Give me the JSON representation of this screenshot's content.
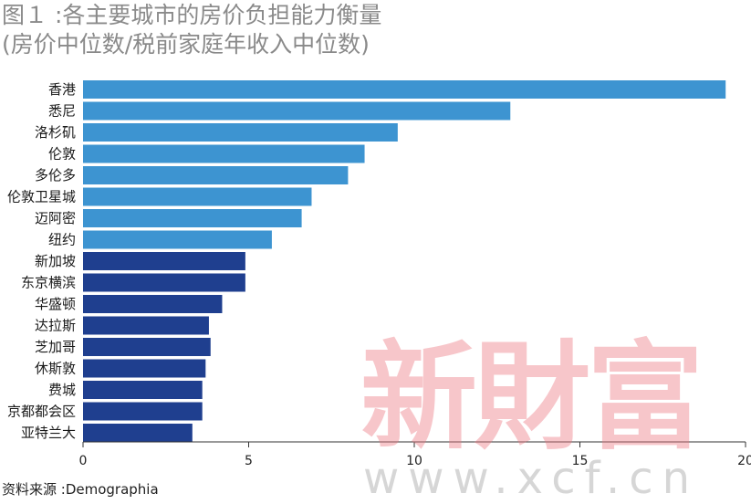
{
  "title": {
    "line1": "图１ :各主要城市的房价负担能力衡量",
    "line2": "(房价中位数/税前家庭年收入中位数)"
  },
  "source": "资料来源 :Demographia",
  "watermark": {
    "cn": "新財富",
    "url": "www.xcf.cn"
  },
  "colors": {
    "light_bar": "#3d94d1",
    "dark_bar": "#1f3f8f",
    "axis": "#333333"
  },
  "chart_data": {
    "type": "bar",
    "orientation": "horizontal",
    "categories": [
      "香港",
      "悉尼",
      "洛杉矶",
      "伦敦",
      "多伦多",
      "伦敦卫星城",
      "迈阿密",
      "纽约",
      "新加坡",
      "东京横滨",
      "华盛顿",
      "达拉斯",
      "芝加哥",
      "休斯敦",
      "费城",
      "京都都会区",
      "亚特兰大"
    ],
    "values": [
      19.4,
      12.9,
      9.5,
      8.5,
      8.0,
      6.9,
      6.6,
      5.7,
      4.9,
      4.9,
      4.2,
      3.8,
      3.85,
      3.7,
      3.6,
      3.6,
      3.3
    ],
    "bar_color_groups": [
      "light",
      "light",
      "light",
      "light",
      "light",
      "light",
      "light",
      "light",
      "dark",
      "dark",
      "dark",
      "dark",
      "dark",
      "dark",
      "dark",
      "dark",
      "dark"
    ],
    "xlim": [
      0,
      20
    ],
    "xticks": [
      0,
      5,
      10,
      15,
      20
    ],
    "grid": false,
    "legend": "none"
  }
}
